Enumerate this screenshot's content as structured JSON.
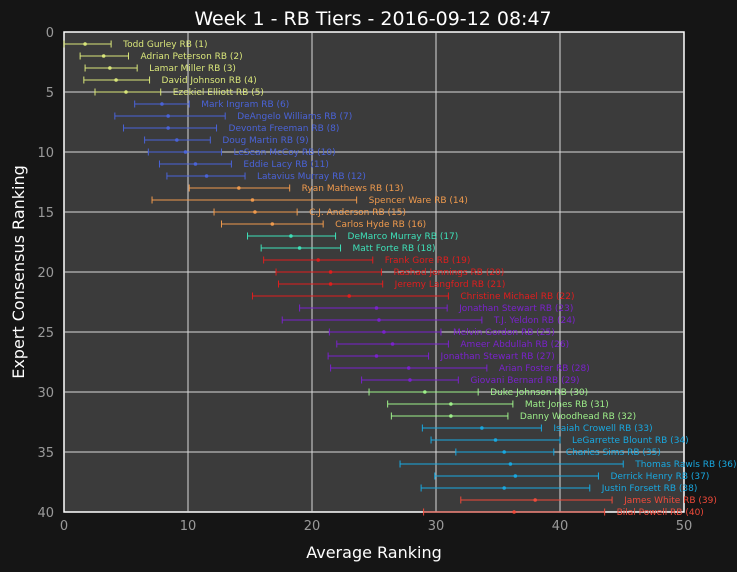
{
  "chart_data": {
    "type": "scatter",
    "title": "Week 1 - RB Tiers - 2016-09-12 08:47",
    "xlabel": "Average Ranking",
    "ylabel": "Expert Consensus Ranking",
    "xlim": [
      0,
      50
    ],
    "ylim": [
      40,
      0
    ],
    "x_ticks": [
      0,
      10,
      20,
      30,
      40,
      50
    ],
    "y_ticks": [
      0,
      5,
      10,
      15,
      20,
      25,
      30,
      35,
      40
    ],
    "grid": true,
    "error_bars": "horizontal",
    "tier_colors": [
      "#d9e67a",
      "#4a63d8",
      "#ef9a4d",
      "#3ee0b8",
      "#e01e1e",
      "#7a22cc",
      "#9ef08a",
      "#18a8e0",
      "#f04a3a"
    ],
    "points": [
      {
        "label": "Todd Gurley RB (1)",
        "tier": 1,
        "rank": 1,
        "avg": 1.7,
        "low": 0,
        "high": 3.8
      },
      {
        "label": "Adrian Peterson RB (2)",
        "tier": 1,
        "rank": 2,
        "avg": 3.2,
        "low": 1.3,
        "high": 5.2
      },
      {
        "label": "Lamar Miller RB (3)",
        "tier": 1,
        "rank": 3,
        "avg": 3.7,
        "low": 1.7,
        "high": 5.9
      },
      {
        "label": "David Johnson RB (4)",
        "tier": 1,
        "rank": 4,
        "avg": 4.2,
        "low": 1.6,
        "high": 6.9
      },
      {
        "label": "Ezekiel Elliott RB (5)",
        "tier": 1,
        "rank": 5,
        "avg": 5.0,
        "low": 2.5,
        "high": 7.8
      },
      {
        "label": "Mark Ingram RB (6)",
        "tier": 2,
        "rank": 6,
        "avg": 7.9,
        "low": 5.7,
        "high": 10.1
      },
      {
        "label": "DeAngelo Williams RB (7)",
        "tier": 2,
        "rank": 7,
        "avg": 8.4,
        "low": 4.1,
        "high": 13.0
      },
      {
        "label": "Devonta Freeman RB (8)",
        "tier": 2,
        "rank": 8,
        "avg": 8.4,
        "low": 4.8,
        "high": 12.3
      },
      {
        "label": "Doug Martin RB (9)",
        "tier": 2,
        "rank": 9,
        "avg": 9.1,
        "low": 6.5,
        "high": 11.8
      },
      {
        "label": "LeSean McCoy RB (10)",
        "tier": 2,
        "rank": 10,
        "avg": 9.8,
        "low": 6.8,
        "high": 12.7
      },
      {
        "label": "Eddie Lacy RB (11)",
        "tier": 2,
        "rank": 11,
        "avg": 10.6,
        "low": 7.7,
        "high": 13.5
      },
      {
        "label": "Latavius Murray RB (12)",
        "tier": 2,
        "rank": 12,
        "avg": 11.5,
        "low": 8.3,
        "high": 14.6
      },
      {
        "label": "Ryan Mathews RB (13)",
        "tier": 3,
        "rank": 13,
        "avg": 14.1,
        "low": 10.1,
        "high": 18.2
      },
      {
        "label": "Spencer Ware RB (14)",
        "tier": 3,
        "rank": 14,
        "avg": 15.2,
        "low": 7.1,
        "high": 23.6
      },
      {
        "label": "C.J. Anderson RB (15)",
        "tier": 3,
        "rank": 15,
        "avg": 15.4,
        "low": 12.1,
        "high": 18.8
      },
      {
        "label": "Carlos Hyde RB (16)",
        "tier": 3,
        "rank": 16,
        "avg": 16.8,
        "low": 12.7,
        "high": 20.9
      },
      {
        "label": "DeMarco Murray RB (17)",
        "tier": 4,
        "rank": 17,
        "avg": 18.3,
        "low": 14.8,
        "high": 21.9
      },
      {
        "label": "Matt Forte RB (18)",
        "tier": 4,
        "rank": 18,
        "avg": 19.0,
        "low": 15.9,
        "high": 22.3
      },
      {
        "label": "Frank Gore RB (19)",
        "tier": 5,
        "rank": 19,
        "avg": 20.5,
        "low": 16.1,
        "high": 24.9
      },
      {
        "label": "Rashad Jennings RB (20)",
        "tier": 5,
        "rank": 20,
        "avg": 21.5,
        "low": 17.1,
        "high": 25.6
      },
      {
        "label": "Jeremy Langford RB (21)",
        "tier": 5,
        "rank": 21,
        "avg": 21.5,
        "low": 17.3,
        "high": 25.7
      },
      {
        "label": "Christine Michael RB (22)",
        "tier": 5,
        "rank": 22,
        "avg": 23.0,
        "low": 15.2,
        "high": 31.0
      },
      {
        "label": "Jonathan Stewart RB (23)",
        "tier": 6,
        "rank": 23,
        "avg": 25.2,
        "low": 19.0,
        "high": 30.9
      },
      {
        "label": "T.J. Yeldon RB (24)",
        "tier": 6,
        "rank": 24,
        "avg": 25.4,
        "low": 17.6,
        "high": 33.7
      },
      {
        "label": "Melvin Gordon RB (25)",
        "tier": 6,
        "rank": 25,
        "avg": 25.8,
        "low": 21.4,
        "high": 30.4
      },
      {
        "label": "Ameer Abdullah RB (26)",
        "tier": 6,
        "rank": 26,
        "avg": 26.5,
        "low": 22.0,
        "high": 31.0
      },
      {
        "label": "Jonathan Stewart RB (27)",
        "tier": 6,
        "rank": 27,
        "avg": 25.2,
        "low": 21.3,
        "high": 29.4
      },
      {
        "label": "Arian Foster RB (28)",
        "tier": 6,
        "rank": 28,
        "avg": 27.8,
        "low": 21.5,
        "high": 34.1
      },
      {
        "label": "Giovani Bernard RB (29)",
        "tier": 6,
        "rank": 29,
        "avg": 27.9,
        "low": 24.0,
        "high": 31.8
      },
      {
        "label": "Duke Johnson RB (30)",
        "tier": 7,
        "rank": 30,
        "avg": 29.1,
        "low": 24.6,
        "high": 33.4
      },
      {
        "label": "Matt Jones RB (31)",
        "tier": 7,
        "rank": 31,
        "avg": 31.2,
        "low": 26.1,
        "high": 36.2
      },
      {
        "label": "Danny Woodhead RB (32)",
        "tier": 7,
        "rank": 32,
        "avg": 31.2,
        "low": 26.4,
        "high": 35.8
      },
      {
        "label": "Isaiah Crowell RB (33)",
        "tier": 8,
        "rank": 33,
        "avg": 33.7,
        "low": 28.9,
        "high": 38.5
      },
      {
        "label": "LeGarrette Blount RB (34)",
        "tier": 8,
        "rank": 34,
        "avg": 34.8,
        "low": 29.6,
        "high": 40.0
      },
      {
        "label": "Charles Sims RB (35)",
        "tier": 8,
        "rank": 35,
        "avg": 35.5,
        "low": 31.6,
        "high": 39.5
      },
      {
        "label": "Thomas Rawls RB (36)",
        "tier": 8,
        "rank": 36,
        "avg": 36.0,
        "low": 27.1,
        "high": 45.1
      },
      {
        "label": "Derrick Henry RB (37)",
        "tier": 8,
        "rank": 37,
        "avg": 36.4,
        "low": 29.9,
        "high": 43.1
      },
      {
        "label": "Justin Forsett RB (38)",
        "tier": 8,
        "rank": 38,
        "avg": 35.5,
        "low": 28.8,
        "high": 42.4
      },
      {
        "label": "James White RB (39)",
        "tier": 9,
        "rank": 39,
        "avg": 38.0,
        "low": 32.0,
        "high": 44.2
      },
      {
        "label": "Bilal Powell RB (40)",
        "tier": 9,
        "rank": 40,
        "avg": 36.3,
        "low": 29.0,
        "high": 43.6
      }
    ]
  }
}
